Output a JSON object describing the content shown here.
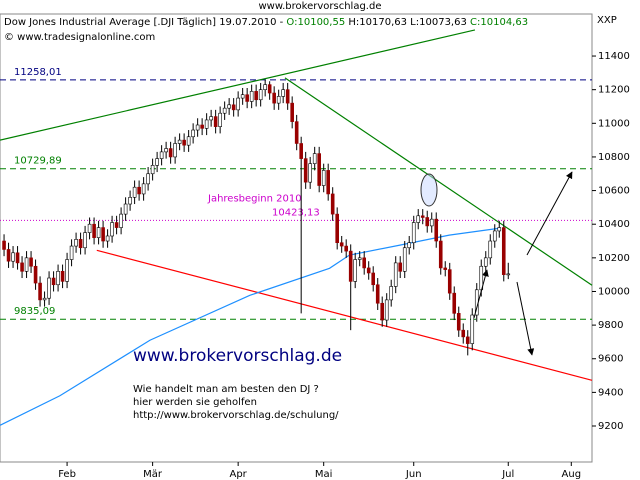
{
  "site": "www.brokervorschlag.de",
  "header": {
    "instrument": "Dow Jones Industrial Average [.DJI  Täglich] 19.07.2010 -",
    "open": "O:10100,55",
    "highlow": "H:10170,63 L:10073,63",
    "close": "C:10104,63",
    "copyright": "© www.tradesignalonline.com",
    "axis_label": "XXP"
  },
  "chart_data": {
    "type": "candlestick",
    "xlim": [
      -0.9,
      130.6
    ],
    "ylim": [
      8986,
      11650
    ],
    "yticks": [
      9200,
      9400,
      9600,
      9800,
      10000,
      10200,
      10400,
      10600,
      10800,
      11000,
      11200,
      11400
    ],
    "xticks": [
      {
        "value": 14,
        "label": "Feb"
      },
      {
        "value": 33,
        "label": "Mär"
      },
      {
        "value": 52,
        "label": "Apr"
      },
      {
        "value": 71,
        "label": "Mai"
      },
      {
        "value": 91,
        "label": "Jun"
      },
      {
        "value": 112,
        "label": "Jul"
      },
      {
        "value": 126,
        "label": "Aug"
      }
    ],
    "up_color": "#ffffff",
    "down_color": "#990000",
    "open": [
      10300,
      10250,
      10180,
      10230,
      10170,
      10120,
      10200,
      10150,
      10050,
      9950,
      9960,
      10080,
      10040,
      10120,
      10060,
      10190,
      10270,
      10310,
      10260,
      10350,
      10400,
      10320,
      10380,
      10300,
      10330,
      10410,
      10380,
      10460,
      10520,
      10560,
      10620,
      10580,
      10640,
      10700,
      10750,
      10790,
      10830,
      10850,
      10800,
      10880,
      10900,
      10870,
      10920,
      10960,
      10990,
      10970,
      11020,
      11040,
      10980,
      11060,
      11090,
      11110,
      11080,
      11150,
      11170,
      11130,
      11190,
      11140,
      11200,
      11230,
      11180,
      11120,
      11160,
      11200,
      11120,
      11010,
      10880,
      10790,
      10650,
      10760,
      10820,
      10630,
      10720,
      10580,
      10460,
      10290,
      10270,
      10240,
      10060,
      10190,
      10200,
      10140,
      10110,
      10040,
      9930,
      9830,
      9950,
      10030,
      10170,
      10120,
      10260,
      10290,
      10410,
      10450,
      10440,
      10390,
      10430,
      10300,
      10140,
      10130,
      9990,
      9870,
      9770,
      9730,
      9690,
      9860,
      10010,
      10150,
      10200,
      10300,
      10360,
      10380,
      10100.55
    ],
    "high": [
      10340,
      10290,
      10270,
      10270,
      10210,
      10240,
      10240,
      10190,
      10090,
      10000,
      10120,
      10120,
      10160,
      10160,
      10230,
      10310,
      10350,
      10350,
      10390,
      10440,
      10440,
      10420,
      10420,
      10370,
      10450,
      10450,
      10500,
      10560,
      10600,
      10660,
      10660,
      10680,
      10740,
      10790,
      10830,
      10870,
      10890,
      10890,
      10920,
      10940,
      10940,
      10960,
      11000,
      11030,
      11030,
      11060,
      11080,
      11080,
      11100,
      11130,
      11150,
      11150,
      11190,
      11210,
      11210,
      11230,
      11230,
      11240,
      11258,
      11250,
      11220,
      11200,
      11240,
      11240,
      11160,
      11050,
      10920,
      10830,
      10800,
      10860,
      10860,
      10760,
      10760,
      10620,
      10500,
      10330,
      10310,
      10280,
      10230,
      10240,
      10240,
      10180,
      10150,
      10080,
      9970,
      9990,
      10070,
      10210,
      10210,
      10300,
      10330,
      10450,
      10490,
      10490,
      10480,
      10470,
      10470,
      10340,
      10180,
      10170,
      10030,
      9910,
      9810,
      9770,
      9900,
      10050,
      10190,
      10240,
      10340,
      10400,
      10420,
      10420,
      10170.63
    ],
    "low": [
      10210,
      10140,
      10140,
      10130,
      10080,
      10080,
      10110,
      10010,
      9910,
      9910,
      9920,
      10000,
      10000,
      10020,
      10020,
      10150,
      10230,
      10220,
      10220,
      10310,
      10280,
      10280,
      10260,
      10260,
      10290,
      10340,
      10340,
      10420,
      10480,
      10520,
      10540,
      10540,
      10600,
      10660,
      10710,
      10750,
      10790,
      10760,
      10760,
      10840,
      10830,
      10830,
      10880,
      10920,
      10930,
      10930,
      10980,
      10940,
      10940,
      11020,
      11050,
      11040,
      11040,
      11110,
      11090,
      11090,
      11100,
      11100,
      11160,
      11140,
      11080,
      11080,
      11120,
      11080,
      10970,
      10840,
      9870,
      10610,
      10610,
      10720,
      10590,
      10590,
      10540,
      10420,
      10250,
      10230,
      10200,
      9770,
      10020,
      10150,
      10100,
      10070,
      10000,
      9890,
      9790,
      9790,
      9910,
      9990,
      10080,
      10080,
      10220,
      10250,
      10370,
      10400,
      10350,
      10350,
      10260,
      10100,
      10090,
      9950,
      9830,
      9730,
      9690,
      9620,
      9650,
      9820,
      9970,
      10110,
      10160,
      10260,
      10320,
      10060,
      10073.63
    ],
    "close": [
      10250,
      10180,
      10230,
      10170,
      10120,
      10200,
      10150,
      10050,
      9950,
      9960,
      10080,
      10040,
      10120,
      10060,
      10190,
      10270,
      10310,
      10260,
      10350,
      10400,
      10320,
      10380,
      10300,
      10330,
      10410,
      10380,
      10460,
      10520,
      10560,
      10620,
      10580,
      10640,
      10700,
      10750,
      10790,
      10830,
      10850,
      10800,
      10880,
      10900,
      10870,
      10920,
      10960,
      10990,
      10970,
      11020,
      11040,
      10980,
      11060,
      11090,
      11110,
      11080,
      11150,
      11170,
      11130,
      11190,
      11140,
      11200,
      11230,
      11180,
      11120,
      11160,
      11200,
      11120,
      11010,
      10880,
      10790,
      10650,
      10760,
      10820,
      10630,
      10720,
      10580,
      10460,
      10290,
      10270,
      10240,
      10060,
      10190,
      10200,
      10140,
      10110,
      10040,
      9930,
      9830,
      9950,
      10030,
      10170,
      10120,
      10260,
      10290,
      10410,
      10450,
      10440,
      10390,
      10430,
      10300,
      10140,
      10130,
      9990,
      9870,
      9770,
      9730,
      9690,
      9860,
      10010,
      10150,
      10200,
      10300,
      10360,
      10380,
      10100,
      10104.63
    ],
    "levels": [
      {
        "value": 11258.01,
        "label": "11258,01",
        "color": "#000080",
        "dash": "6,4"
      },
      {
        "value": 10729.89,
        "label": "10729,89",
        "color": "#008000",
        "dash": "6,4"
      },
      {
        "value": 10423.13,
        "label": "10423,13",
        "color": "#cc00cc",
        "dash": "1,2"
      },
      {
        "value": 9835.09,
        "label": "9835,09",
        "color": "#008000",
        "dash": "6,4"
      }
    ],
    "annotation": {
      "text": "Jahresbeginn 2010",
      "color": "#cc00cc"
    },
    "overlays": [
      {
        "color": "#008000",
        "points": [
          [
            -0.9,
            10900
          ],
          [
            104.6,
            11555
          ]
        ]
      },
      {
        "color": "#008000",
        "points": [
          [
            62.4,
            11270
          ],
          [
            130.6,
            10037
          ]
        ]
      },
      {
        "color": "#ff0000",
        "points": [
          [
            20.6,
            10245
          ],
          [
            130.6,
            9472
          ]
        ]
      },
      {
        "color": "#1e90ff",
        "points": [
          [
            -0.9,
            9204
          ],
          [
            12.4,
            9380
          ],
          [
            32.4,
            9710
          ],
          [
            54.6,
            9977
          ],
          [
            72.3,
            10138
          ],
          [
            76.7,
            10216
          ],
          [
            87.8,
            10275
          ],
          [
            98.9,
            10335
          ],
          [
            110,
            10376
          ]
        ]
      }
    ]
  },
  "promo": {
    "url": "www.brokervorschlag.de",
    "lines": [
      "Wie handelt man am besten  den DJ ?",
      "hier werden sie geholfen",
      "http://www.brokervorschlag.de/schulung/"
    ]
  }
}
